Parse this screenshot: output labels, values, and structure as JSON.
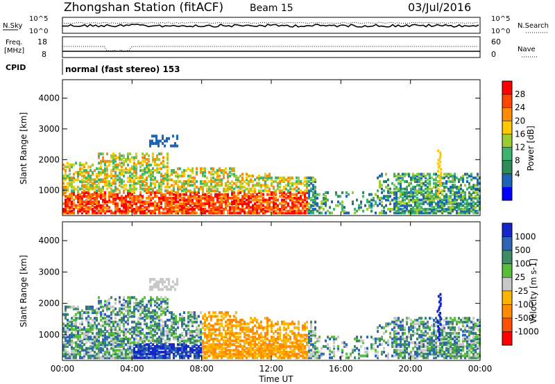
{
  "header": {
    "title": "Zhongshan Station (fitACF)",
    "beam": "Beam 15",
    "date": "03/Jul/2016"
  },
  "noise_panel": {
    "left_label": "N.Sky",
    "right_label": "N.Search",
    "left_ticks": [
      "10^5",
      "10^0"
    ],
    "right_ticks": [
      "10^5",
      "10^0"
    ]
  },
  "freq_panel": {
    "left_label_1": "Freq.",
    "left_label_2": "[MHz]",
    "left_ticks": [
      "18",
      "8"
    ],
    "right_label": "Nave",
    "right_ticks": [
      "60",
      "0"
    ],
    "cpid_label": "CPID",
    "cpid_text": "normal (fast stereo) 153"
  },
  "time_axis": {
    "label": "Time UT",
    "ticks": [
      "00:00",
      "04:00",
      "08:00",
      "12:00",
      "16:00",
      "20:00",
      "00:00"
    ]
  },
  "chart_data": [
    {
      "type": "heatmap",
      "name": "power",
      "ylabel": "Slant Range [km]",
      "yticks": [
        1000,
        2000,
        3000,
        4000
      ],
      "ylim": [
        180,
        4600
      ],
      "xlim_hours": [
        0,
        24
      ],
      "colorbar": {
        "label": "Power [dB]",
        "ticks": [
          "28",
          "24",
          "20",
          "16",
          "12",
          "8",
          "4"
        ],
        "colors": [
          "#ff0000",
          "#ff4500",
          "#ff8c00",
          "#ffc800",
          "#9acd32",
          "#3cb371",
          "#2e8b57",
          "#1e64b4",
          "#0000ff"
        ]
      }
    },
    {
      "type": "heatmap",
      "name": "velocity",
      "ylabel": "Slant Range [km]",
      "yticks": [
        1000,
        2000,
        3000,
        4000
      ],
      "ylim": [
        180,
        4600
      ],
      "xlim_hours": [
        0,
        24
      ],
      "colorbar": {
        "label": "Velocity [m s-1]",
        "ticks": [
          "1000",
          "500",
          "100",
          "25",
          "-25",
          "-100",
          "-500",
          "-1000"
        ],
        "colors": [
          "#1428c8",
          "#2e64b4",
          "#3c8c64",
          "#5abe3c",
          "#c8c8c8",
          "#ffb400",
          "#ff8c00",
          "#ff5000",
          "#ff0000"
        ]
      }
    }
  ]
}
